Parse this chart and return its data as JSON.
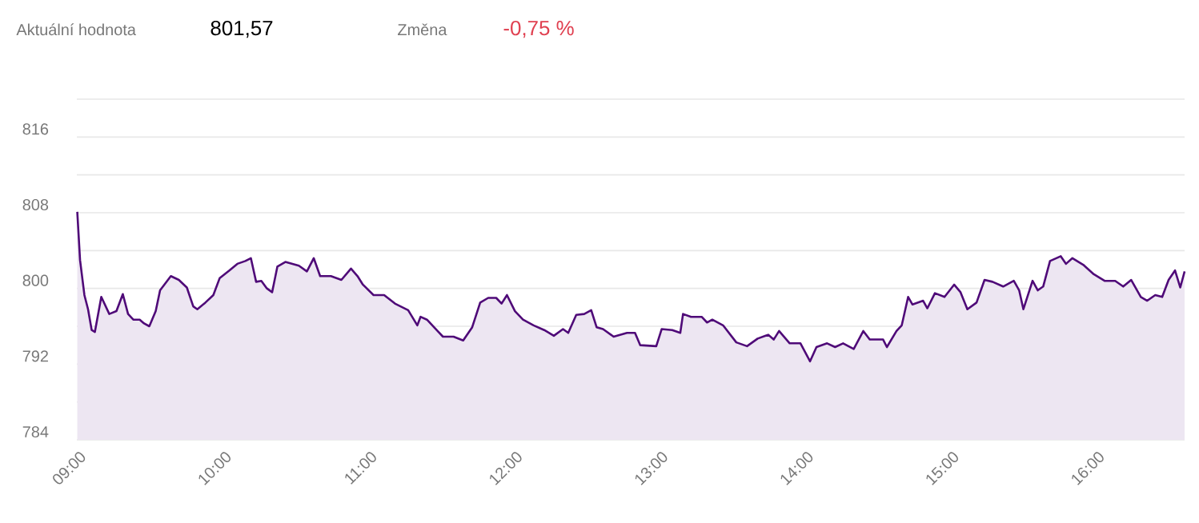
{
  "chart_data": {
    "type": "area",
    "color": "#4f0a78",
    "grid": "y",
    "xlim": [
      9,
      16.613
    ],
    "ylim": [
      784,
      820
    ],
    "xticks": [
      {
        "value": 9,
        "label": "09:00"
      },
      {
        "value": 10,
        "label": "10:00"
      },
      {
        "value": 11,
        "label": "11:00"
      },
      {
        "value": 12,
        "label": "12:00"
      },
      {
        "value": 13,
        "label": "13:00"
      },
      {
        "value": 14,
        "label": "14:00"
      },
      {
        "value": 15,
        "label": "15:00"
      },
      {
        "value": 16,
        "label": "16:00"
      }
    ],
    "yticks": [
      784,
      {
        "value": 788,
        "label": null
      },
      792,
      {
        "value": 796,
        "label": null
      },
      800,
      {
        "value": 804,
        "label": null
      },
      808,
      {
        "value": 812,
        "label": null
      },
      816,
      {
        "value": 820,
        "label": null
      }
    ],
    "annotations": [
      "Aktuální hodnota",
      "801,57",
      "Změna",
      "-0,75 %"
    ],
    "x": [
      9.003,
      9.022,
      9.052,
      9.077,
      9.102,
      9.124,
      9.168,
      9.223,
      9.272,
      9.316,
      9.352,
      9.388,
      9.432,
      9.462,
      9.498,
      9.542,
      9.572,
      9.646,
      9.701,
      9.756,
      9.8,
      9.828,
      9.883,
      9.938,
      9.982,
      10.048,
      10.103,
      10.158,
      10.196,
      10.232,
      10.268,
      10.306,
      10.342,
      10.378,
      10.433,
      10.526,
      10.581,
      10.628,
      10.672,
      10.746,
      10.818,
      10.884,
      10.929,
      10.966,
      11.039,
      11.112,
      11.186,
      11.277,
      11.34,
      11.362,
      11.406,
      11.479,
      11.516,
      11.589,
      11.655,
      11.717,
      11.772,
      11.827,
      11.882,
      11.919,
      11.956,
      12.011,
      12.066,
      12.139,
      12.212,
      12.278,
      12.341,
      12.377,
      12.432,
      12.487,
      12.535,
      12.572,
      12.616,
      12.689,
      12.781,
      12.836,
      12.872,
      12.982,
      13.019,
      13.092,
      13.147,
      13.166,
      13.221,
      13.294,
      13.331,
      13.367,
      13.441,
      13.532,
      13.606,
      13.679,
      13.734,
      13.752,
      13.789,
      13.826,
      13.899,
      13.973,
      14.039,
      14.083,
      14.156,
      14.211,
      14.266,
      14.339,
      14.405,
      14.449,
      14.541,
      14.567,
      14.633,
      14.669,
      14.713,
      14.743,
      14.816,
      14.845,
      14.897,
      14.963,
      15.029,
      15.073,
      15.12,
      15.183,
      15.238,
      15.293,
      15.366,
      15.439,
      15.476,
      15.505,
      15.568,
      15.604,
      15.641,
      15.688,
      15.762,
      15.798,
      15.842,
      15.916,
      15.989,
      16.063,
      16.136,
      16.191,
      16.246,
      16.312,
      16.356,
      16.411,
      16.459,
      16.503,
      16.547,
      16.583,
      16.613
    ],
    "values": [
      808.1,
      803.0,
      799.3,
      797.8,
      795.6,
      795.4,
      799.1,
      797.3,
      797.6,
      799.4,
      797.3,
      796.7,
      796.7,
      796.3,
      796.0,
      797.6,
      799.8,
      801.3,
      800.9,
      800.1,
      798.1,
      797.8,
      798.5,
      799.3,
      801.1,
      801.9,
      802.6,
      802.9,
      803.2,
      800.7,
      800.8,
      800.0,
      799.6,
      802.3,
      802.8,
      802.4,
      801.8,
      803.2,
      801.3,
      801.3,
      800.9,
      802.1,
      801.3,
      800.4,
      799.3,
      799.3,
      798.4,
      797.7,
      796.1,
      797.0,
      796.7,
      795.5,
      794.9,
      794.9,
      794.5,
      795.9,
      798.5,
      799.0,
      799.0,
      798.4,
      799.3,
      797.6,
      796.7,
      796.1,
      795.6,
      795.0,
      795.7,
      795.3,
      797.2,
      797.3,
      797.7,
      795.9,
      795.7,
      794.9,
      795.3,
      795.3,
      794.0,
      793.9,
      795.7,
      795.6,
      795.3,
      797.3,
      797.0,
      797.0,
      796.4,
      796.7,
      796.1,
      794.3,
      793.9,
      794.7,
      795.0,
      795.1,
      794.6,
      795.5,
      794.2,
      794.2,
      792.3,
      793.8,
      794.2,
      793.8,
      794.2,
      793.6,
      795.5,
      794.6,
      794.6,
      793.8,
      795.5,
      796.1,
      799.1,
      798.3,
      798.7,
      797.9,
      799.5,
      799.1,
      800.4,
      799.6,
      797.8,
      798.5,
      800.9,
      800.7,
      800.2,
      800.8,
      799.8,
      797.8,
      800.8,
      799.8,
      800.2,
      802.9,
      803.4,
      802.6,
      803.2,
      802.5,
      801.5,
      800.8,
      800.8,
      800.2,
      800.9,
      799.1,
      798.7,
      799.3,
      799.1,
      800.9,
      801.9,
      800.1,
      801.8
    ]
  }
}
